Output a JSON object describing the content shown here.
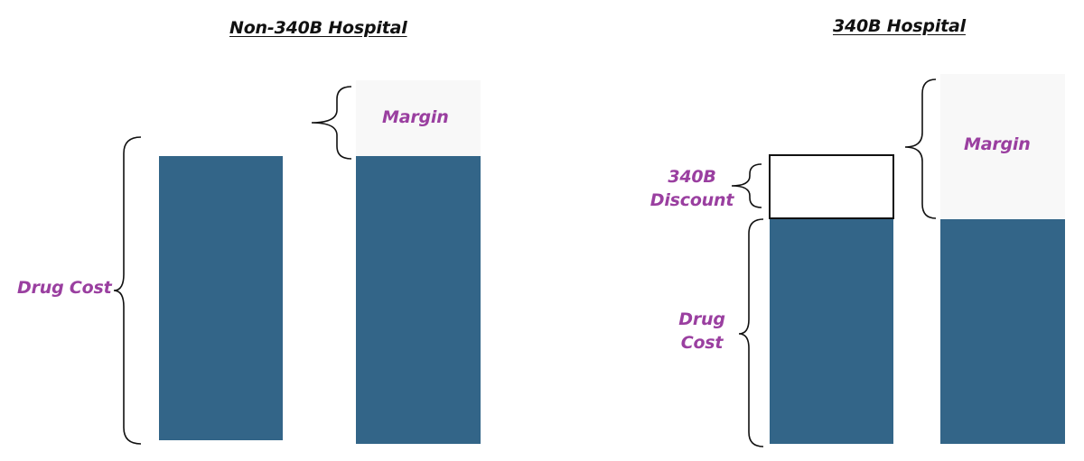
{
  "colors": {
    "bar": "#336588",
    "margin_fill": "#f8f8f8",
    "label": "#9a3fa0",
    "outline": "#111111"
  },
  "left_panel": {
    "title": "Non-340B Hospital",
    "drug_cost_label": "Drug Cost",
    "margin_label": "Margin"
  },
  "right_panel": {
    "title": "340B Hospital",
    "discount_label_line1": "340B",
    "discount_label_line2": "Discount",
    "drug_cost_label_line1": "Drug",
    "drug_cost_label_line2": "Cost",
    "margin_label": "Margin"
  }
}
